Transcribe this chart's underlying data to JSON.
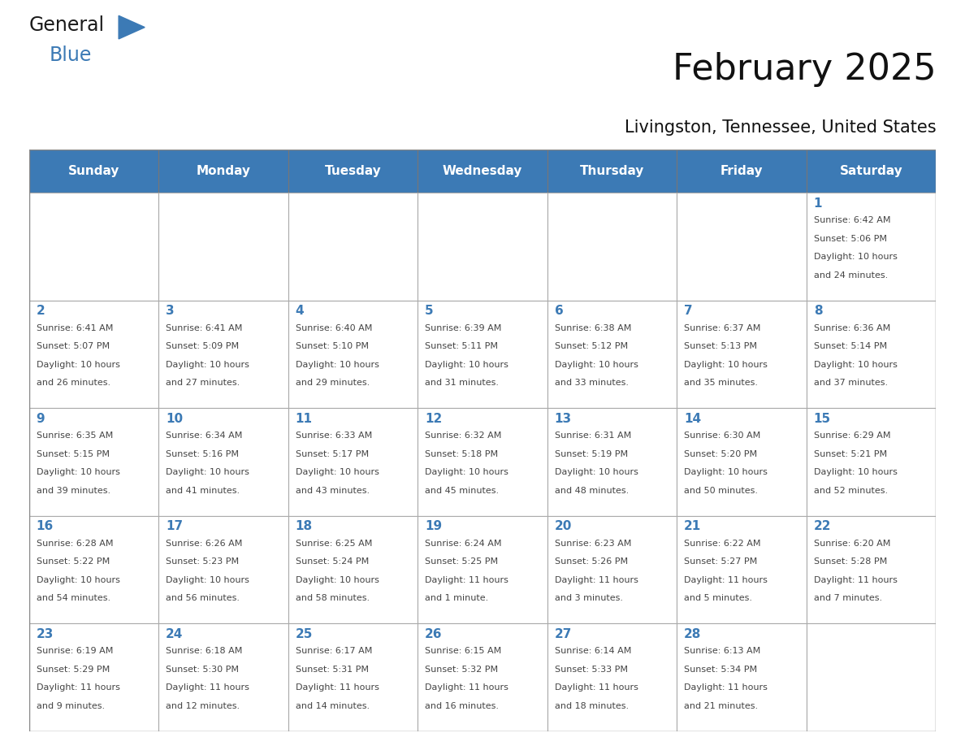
{
  "title": "February 2025",
  "subtitle": "Livingston, Tennessee, United States",
  "header_color": "#3C7AB5",
  "header_text_color": "#FFFFFF",
  "cell_bg_color": "#FFFFFF",
  "cell_border_color": "#AAAAAA",
  "day_number_color": "#3C7AB5",
  "detail_text_color": "#444444",
  "days_of_week": [
    "Sunday",
    "Monday",
    "Tuesday",
    "Wednesday",
    "Thursday",
    "Friday",
    "Saturday"
  ],
  "weeks": [
    [
      {
        "day": null,
        "sunrise": null,
        "sunset": null,
        "daylight": null
      },
      {
        "day": null,
        "sunrise": null,
        "sunset": null,
        "daylight": null
      },
      {
        "day": null,
        "sunrise": null,
        "sunset": null,
        "daylight": null
      },
      {
        "day": null,
        "sunrise": null,
        "sunset": null,
        "daylight": null
      },
      {
        "day": null,
        "sunrise": null,
        "sunset": null,
        "daylight": null
      },
      {
        "day": null,
        "sunrise": null,
        "sunset": null,
        "daylight": null
      },
      {
        "day": 1,
        "sunrise": "6:42 AM",
        "sunset": "5:06 PM",
        "daylight": "10 hours and 24 minutes."
      }
    ],
    [
      {
        "day": 2,
        "sunrise": "6:41 AM",
        "sunset": "5:07 PM",
        "daylight": "10 hours and 26 minutes."
      },
      {
        "day": 3,
        "sunrise": "6:41 AM",
        "sunset": "5:09 PM",
        "daylight": "10 hours and 27 minutes."
      },
      {
        "day": 4,
        "sunrise": "6:40 AM",
        "sunset": "5:10 PM",
        "daylight": "10 hours and 29 minutes."
      },
      {
        "day": 5,
        "sunrise": "6:39 AM",
        "sunset": "5:11 PM",
        "daylight": "10 hours and 31 minutes."
      },
      {
        "day": 6,
        "sunrise": "6:38 AM",
        "sunset": "5:12 PM",
        "daylight": "10 hours and 33 minutes."
      },
      {
        "day": 7,
        "sunrise": "6:37 AM",
        "sunset": "5:13 PM",
        "daylight": "10 hours and 35 minutes."
      },
      {
        "day": 8,
        "sunrise": "6:36 AM",
        "sunset": "5:14 PM",
        "daylight": "10 hours and 37 minutes."
      }
    ],
    [
      {
        "day": 9,
        "sunrise": "6:35 AM",
        "sunset": "5:15 PM",
        "daylight": "10 hours and 39 minutes."
      },
      {
        "day": 10,
        "sunrise": "6:34 AM",
        "sunset": "5:16 PM",
        "daylight": "10 hours and 41 minutes."
      },
      {
        "day": 11,
        "sunrise": "6:33 AM",
        "sunset": "5:17 PM",
        "daylight": "10 hours and 43 minutes."
      },
      {
        "day": 12,
        "sunrise": "6:32 AM",
        "sunset": "5:18 PM",
        "daylight": "10 hours and 45 minutes."
      },
      {
        "day": 13,
        "sunrise": "6:31 AM",
        "sunset": "5:19 PM",
        "daylight": "10 hours and 48 minutes."
      },
      {
        "day": 14,
        "sunrise": "6:30 AM",
        "sunset": "5:20 PM",
        "daylight": "10 hours and 50 minutes."
      },
      {
        "day": 15,
        "sunrise": "6:29 AM",
        "sunset": "5:21 PM",
        "daylight": "10 hours and 52 minutes."
      }
    ],
    [
      {
        "day": 16,
        "sunrise": "6:28 AM",
        "sunset": "5:22 PM",
        "daylight": "10 hours and 54 minutes."
      },
      {
        "day": 17,
        "sunrise": "6:26 AM",
        "sunset": "5:23 PM",
        "daylight": "10 hours and 56 minutes."
      },
      {
        "day": 18,
        "sunrise": "6:25 AM",
        "sunset": "5:24 PM",
        "daylight": "10 hours and 58 minutes."
      },
      {
        "day": 19,
        "sunrise": "6:24 AM",
        "sunset": "5:25 PM",
        "daylight": "11 hours and 1 minute."
      },
      {
        "day": 20,
        "sunrise": "6:23 AM",
        "sunset": "5:26 PM",
        "daylight": "11 hours and 3 minutes."
      },
      {
        "day": 21,
        "sunrise": "6:22 AM",
        "sunset": "5:27 PM",
        "daylight": "11 hours and 5 minutes."
      },
      {
        "day": 22,
        "sunrise": "6:20 AM",
        "sunset": "5:28 PM",
        "daylight": "11 hours and 7 minutes."
      }
    ],
    [
      {
        "day": 23,
        "sunrise": "6:19 AM",
        "sunset": "5:29 PM",
        "daylight": "11 hours and 9 minutes."
      },
      {
        "day": 24,
        "sunrise": "6:18 AM",
        "sunset": "5:30 PM",
        "daylight": "11 hours and 12 minutes."
      },
      {
        "day": 25,
        "sunrise": "6:17 AM",
        "sunset": "5:31 PM",
        "daylight": "11 hours and 14 minutes."
      },
      {
        "day": 26,
        "sunrise": "6:15 AM",
        "sunset": "5:32 PM",
        "daylight": "11 hours and 16 minutes."
      },
      {
        "day": 27,
        "sunrise": "6:14 AM",
        "sunset": "5:33 PM",
        "daylight": "11 hours and 18 minutes."
      },
      {
        "day": 28,
        "sunrise": "6:13 AM",
        "sunset": "5:34 PM",
        "daylight": "11 hours and 21 minutes."
      },
      {
        "day": null,
        "sunrise": null,
        "sunset": null,
        "daylight": null
      }
    ]
  ],
  "logo_color_general": "#1a1a1a",
  "logo_color_blue": "#3C7AB5",
  "logo_triangle_color": "#3C7AB5",
  "title_fontsize": 32,
  "subtitle_fontsize": 15,
  "header_fontsize": 11,
  "day_num_fontsize": 11,
  "detail_fontsize": 8
}
